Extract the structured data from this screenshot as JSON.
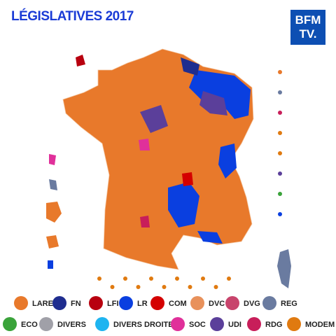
{
  "header": {
    "title": "LÉGISLATIVES 2017",
    "logo": {
      "line1": "BFM",
      "line2": "TV."
    }
  },
  "legend": {
    "items": [
      {
        "name": "LAREM",
        "color": "#e8792b"
      },
      {
        "name": "FN",
        "color": "#1f2d8f"
      },
      {
        "name": "LFI",
        "color": "#b8000f"
      },
      {
        "name": "LR",
        "color": "#0a3fe0"
      },
      {
        "name": "COM",
        "color": "#d40000"
      },
      {
        "name": "DVC",
        "color": "#e8915b"
      },
      {
        "name": "DVG",
        "color": "#c8446c"
      },
      {
        "name": "REG",
        "color": "#6a7ba0"
      },
      {
        "name": "ECO",
        "color": "#3aa33a"
      },
      {
        "name": "DIVERS",
        "color": "#a0a0a8"
      },
      {
        "name": "DIVERS DROITE",
        "color": "#1eb4f0"
      },
      {
        "name": "SOC",
        "color": "#e0309a"
      },
      {
        "name": "UDI",
        "color": "#5b3f9a"
      },
      {
        "name": "RDG",
        "color": "#c81e5a"
      },
      {
        "name": "MODEM",
        "color": "#e07a10"
      }
    ]
  }
}
